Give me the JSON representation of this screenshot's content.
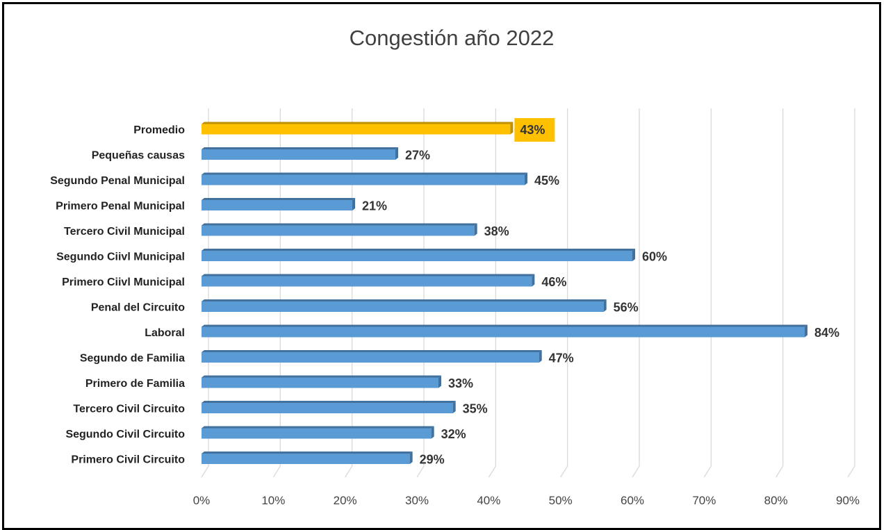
{
  "chart_data": {
    "type": "bar",
    "orientation": "horizontal",
    "title": "Congestión año 2022",
    "categories": [
      "Promedio",
      "Pequeñas causas",
      "Segundo Penal Municipal",
      "Primero Penal Municipal",
      "Tercero Civil Municipal",
      "Segundo Ciivl Municipal",
      "Primero Ciivl Municipal",
      "Penal del Circuito",
      "Laboral",
      "Segundo de Familia",
      "Primero de Familia",
      "Tercero Civil Circuito",
      "Segundo Civil Circuito",
      "Primero Civil Circuito"
    ],
    "values": [
      43,
      27,
      45,
      21,
      38,
      60,
      46,
      56,
      84,
      47,
      33,
      35,
      32,
      29
    ],
    "value_labels": [
      "43%",
      "27%",
      "45%",
      "21%",
      "38%",
      "60%",
      "46%",
      "56%",
      "84%",
      "47%",
      "33%",
      "35%",
      "32%",
      "29%"
    ],
    "highlight_category": "Promedio",
    "xlim": [
      0,
      90
    ],
    "x_ticks": [
      "0%",
      "10%",
      "20%",
      "30%",
      "40%",
      "50%",
      "60%",
      "70%",
      "80%",
      "90%"
    ],
    "xlabel": "",
    "ylabel": "",
    "grid": true,
    "legend": "none",
    "colors": {
      "bar": "#5b9bd5",
      "bar_dark": "#41719c",
      "highlight": "#ffc000",
      "highlight_dark": "#bf9000",
      "grid": "#d9d9d9"
    }
  }
}
